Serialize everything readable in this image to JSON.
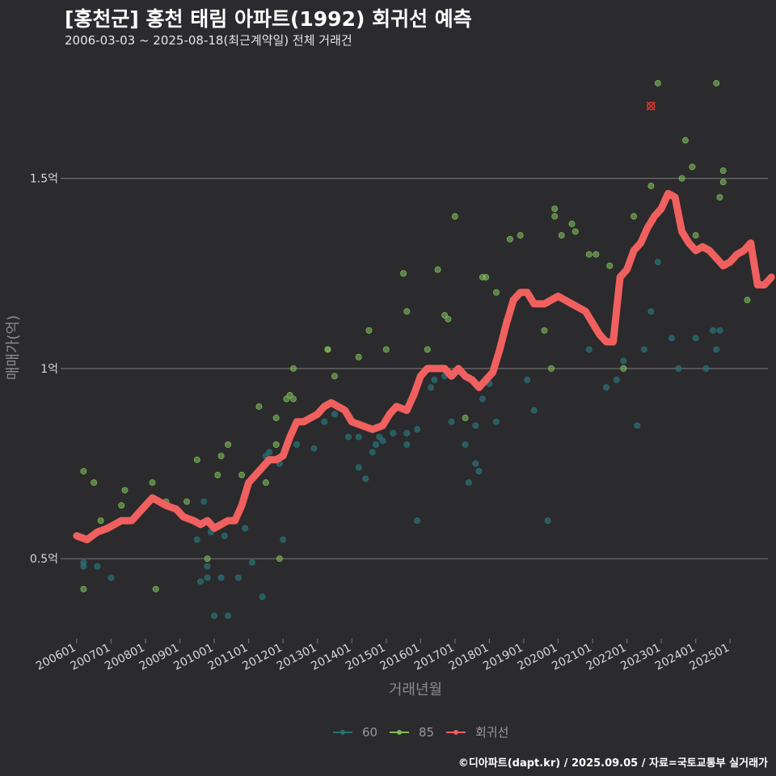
{
  "title": "[홍천군] 홍천 태림 아파트(1992) 회귀선 예측",
  "subtitle": "2006-03-03 ~ 2025-08-18(최근계약일) 전체 거래건",
  "footer": "©디아파트(dapt.kr) / 2025.09.05 / 자료=국토교통부 실거래가",
  "colors": {
    "background": "#2b2a2c",
    "grid": "#6e6e6e",
    "series_60": "#2a6f74",
    "series_85": "#7dbb5c",
    "regression": "#f0605f",
    "highlight": "#d7372f"
  },
  "chart_data": {
    "type": "scatter",
    "xlabel": "거래년월",
    "ylabel": "매매가(억)",
    "x_ticks": [
      "200601",
      "200701",
      "200801",
      "200901",
      "201001",
      "201101",
      "201201",
      "201301",
      "201401",
      "201501",
      "201601",
      "201701",
      "201801",
      "201901",
      "202001",
      "202101",
      "202201",
      "202301",
      "202401",
      "202501"
    ],
    "y_ticks": [
      {
        "value": 0.5,
        "label": "0.5억"
      },
      {
        "value": 1.0,
        "label": "1억"
      },
      {
        "value": 1.5,
        "label": "1.5억"
      }
    ],
    "xlim": [
      2005.65,
      2026.1
    ],
    "ylim": [
      0.29,
      1.82
    ],
    "grid": "horizontal",
    "legend_position": "bottom",
    "series": [
      {
        "name": "60",
        "points": [
          [
            2006.2,
            0.49
          ],
          [
            2006.2,
            0.48
          ],
          [
            2006.6,
            0.48
          ],
          [
            2007.0,
            0.45
          ],
          [
            2008.6,
            0.64
          ],
          [
            2009.5,
            0.55
          ],
          [
            2009.6,
            0.44
          ],
          [
            2009.7,
            0.65
          ],
          [
            2009.8,
            0.45
          ],
          [
            2009.8,
            0.48
          ],
          [
            2009.9,
            0.57
          ],
          [
            2010.0,
            0.35
          ],
          [
            2010.2,
            0.45
          ],
          [
            2010.3,
            0.56
          ],
          [
            2010.4,
            0.35
          ],
          [
            2010.7,
            0.45
          ],
          [
            2010.9,
            0.58
          ],
          [
            2011.1,
            0.49
          ],
          [
            2011.4,
            0.4
          ],
          [
            2011.5,
            0.77
          ],
          [
            2011.6,
            0.78
          ],
          [
            2011.9,
            0.75
          ],
          [
            2012.0,
            0.55
          ],
          [
            2012.4,
            0.8
          ],
          [
            2012.9,
            0.79
          ],
          [
            2013.2,
            0.86
          ],
          [
            2013.5,
            0.88
          ],
          [
            2013.9,
            0.82
          ],
          [
            2014.2,
            0.74
          ],
          [
            2014.2,
            0.82
          ],
          [
            2014.4,
            0.71
          ],
          [
            2014.6,
            0.78
          ],
          [
            2014.7,
            0.8
          ],
          [
            2014.8,
            0.82
          ],
          [
            2014.9,
            0.81
          ],
          [
            2015.2,
            0.83
          ],
          [
            2015.6,
            0.8
          ],
          [
            2015.6,
            0.83
          ],
          [
            2015.9,
            0.6
          ],
          [
            2015.9,
            0.84
          ],
          [
            2016.3,
            0.95
          ],
          [
            2016.4,
            0.97
          ],
          [
            2016.7,
            0.98
          ],
          [
            2016.9,
            0.86
          ],
          [
            2017.3,
            0.8
          ],
          [
            2017.4,
            0.7
          ],
          [
            2017.6,
            0.85
          ],
          [
            2017.6,
            0.75
          ],
          [
            2017.7,
            0.73
          ],
          [
            2017.8,
            0.92
          ],
          [
            2018.0,
            0.96
          ],
          [
            2018.2,
            0.86
          ],
          [
            2019.1,
            0.97
          ],
          [
            2019.3,
            0.89
          ],
          [
            2019.7,
            0.6
          ],
          [
            2020.9,
            1.05
          ],
          [
            2021.4,
            0.95
          ],
          [
            2021.7,
            0.97
          ],
          [
            2021.9,
            1.02
          ],
          [
            2022.3,
            0.85
          ],
          [
            2022.5,
            1.05
          ],
          [
            2022.7,
            1.15
          ],
          [
            2022.9,
            1.28
          ],
          [
            2023.3,
            1.08
          ],
          [
            2023.5,
            1.0
          ],
          [
            2024.0,
            1.08
          ],
          [
            2024.3,
            1.0
          ],
          [
            2024.5,
            1.1
          ],
          [
            2024.6,
            1.05
          ],
          [
            2024.7,
            1.1
          ]
        ]
      },
      {
        "name": "85",
        "points": [
          [
            2006.2,
            0.73
          ],
          [
            2006.2,
            0.42
          ],
          [
            2006.5,
            0.7
          ],
          [
            2006.7,
            0.6
          ],
          [
            2007.3,
            0.64
          ],
          [
            2007.4,
            0.68
          ],
          [
            2008.2,
            0.7
          ],
          [
            2008.3,
            0.42
          ],
          [
            2008.6,
            0.65
          ],
          [
            2009.2,
            0.65
          ],
          [
            2009.5,
            0.76
          ],
          [
            2009.8,
            0.5
          ],
          [
            2010.1,
            0.72
          ],
          [
            2010.2,
            0.77
          ],
          [
            2010.4,
            0.8
          ],
          [
            2010.8,
            0.72
          ],
          [
            2011.3,
            0.9
          ],
          [
            2011.5,
            0.7
          ],
          [
            2011.8,
            0.87
          ],
          [
            2011.8,
            0.8
          ],
          [
            2011.9,
            0.5
          ],
          [
            2012.1,
            0.92
          ],
          [
            2012.2,
            0.93
          ],
          [
            2012.3,
            1.0
          ],
          [
            2012.3,
            0.92
          ],
          [
            2013.3,
            1.05
          ],
          [
            2013.3,
            1.05
          ],
          [
            2013.5,
            0.98
          ],
          [
            2014.2,
            1.03
          ],
          [
            2014.5,
            1.1
          ],
          [
            2015.0,
            1.05
          ],
          [
            2015.5,
            1.25
          ],
          [
            2015.6,
            1.15
          ],
          [
            2016.2,
            1.05
          ],
          [
            2016.5,
            1.26
          ],
          [
            2016.7,
            1.14
          ],
          [
            2016.8,
            1.13
          ],
          [
            2017.0,
            1.4
          ],
          [
            2017.3,
            0.87
          ],
          [
            2017.8,
            1.24
          ],
          [
            2017.9,
            1.24
          ],
          [
            2018.2,
            1.2
          ],
          [
            2018.6,
            1.34
          ],
          [
            2018.9,
            1.35
          ],
          [
            2019.6,
            1.1
          ],
          [
            2019.8,
            1.0
          ],
          [
            2019.9,
            1.42
          ],
          [
            2019.9,
            1.4
          ],
          [
            2020.1,
            1.35
          ],
          [
            2020.4,
            1.38
          ],
          [
            2020.5,
            1.36
          ],
          [
            2020.9,
            1.3
          ],
          [
            2021.1,
            1.3
          ],
          [
            2021.5,
            1.27
          ],
          [
            2021.9,
            1.0
          ],
          [
            2022.2,
            1.4
          ],
          [
            2022.7,
            1.48
          ],
          [
            2022.9,
            1.75
          ],
          [
            2023.6,
            1.5
          ],
          [
            2023.7,
            1.6
          ],
          [
            2023.9,
            1.53
          ],
          [
            2024.0,
            1.35
          ],
          [
            2024.6,
            1.75
          ],
          [
            2024.7,
            1.45
          ],
          [
            2024.8,
            1.52
          ],
          [
            2024.8,
            1.49
          ],
          [
            2025.5,
            1.18
          ]
        ]
      },
      {
        "name": "회귀선",
        "points": [
          [
            2006.0,
            0.56
          ],
          [
            2006.3,
            0.55
          ],
          [
            2006.6,
            0.57
          ],
          [
            2006.9,
            0.58
          ],
          [
            2007.1,
            0.59
          ],
          [
            2007.3,
            0.6
          ],
          [
            2007.6,
            0.6
          ],
          [
            2007.8,
            0.62
          ],
          [
            2008.0,
            0.64
          ],
          [
            2008.2,
            0.66
          ],
          [
            2008.6,
            0.64
          ],
          [
            2008.9,
            0.63
          ],
          [
            2009.1,
            0.61
          ],
          [
            2009.4,
            0.6
          ],
          [
            2009.6,
            0.59
          ],
          [
            2009.8,
            0.6
          ],
          [
            2010.0,
            0.58
          ],
          [
            2010.2,
            0.59
          ],
          [
            2010.4,
            0.6
          ],
          [
            2010.6,
            0.6
          ],
          [
            2010.8,
            0.64
          ],
          [
            2011.0,
            0.7
          ],
          [
            2011.2,
            0.72
          ],
          [
            2011.4,
            0.74
          ],
          [
            2011.6,
            0.76
          ],
          [
            2011.8,
            0.76
          ],
          [
            2012.0,
            0.77
          ],
          [
            2012.2,
            0.82
          ],
          [
            2012.4,
            0.86
          ],
          [
            2012.6,
            0.86
          ],
          [
            2012.8,
            0.87
          ],
          [
            2013.0,
            0.88
          ],
          [
            2013.2,
            0.9
          ],
          [
            2013.4,
            0.91
          ],
          [
            2013.6,
            0.9
          ],
          [
            2013.8,
            0.89
          ],
          [
            2014.0,
            0.86
          ],
          [
            2014.3,
            0.85
          ],
          [
            2014.6,
            0.84
          ],
          [
            2014.9,
            0.85
          ],
          [
            2015.1,
            0.88
          ],
          [
            2015.3,
            0.9
          ],
          [
            2015.6,
            0.89
          ],
          [
            2015.8,
            0.93
          ],
          [
            2016.0,
            0.98
          ],
          [
            2016.2,
            1.0
          ],
          [
            2016.4,
            1.0
          ],
          [
            2016.7,
            1.0
          ],
          [
            2016.9,
            0.98
          ],
          [
            2017.1,
            1.0
          ],
          [
            2017.3,
            0.98
          ],
          [
            2017.5,
            0.97
          ],
          [
            2017.7,
            0.95
          ],
          [
            2017.9,
            0.97
          ],
          [
            2018.1,
            0.99
          ],
          [
            2018.3,
            1.05
          ],
          [
            2018.5,
            1.12
          ],
          [
            2018.7,
            1.18
          ],
          [
            2018.9,
            1.2
          ],
          [
            2019.1,
            1.2
          ],
          [
            2019.3,
            1.17
          ],
          [
            2019.6,
            1.17
          ],
          [
            2019.8,
            1.18
          ],
          [
            2020.0,
            1.19
          ],
          [
            2020.2,
            1.18
          ],
          [
            2020.4,
            1.17
          ],
          [
            2020.6,
            1.16
          ],
          [
            2020.8,
            1.15
          ],
          [
            2021.0,
            1.12
          ],
          [
            2021.2,
            1.09
          ],
          [
            2021.4,
            1.07
          ],
          [
            2021.6,
            1.07
          ],
          [
            2021.8,
            1.24
          ],
          [
            2022.0,
            1.26
          ],
          [
            2022.2,
            1.31
          ],
          [
            2022.4,
            1.33
          ],
          [
            2022.6,
            1.37
          ],
          [
            2022.8,
            1.4
          ],
          [
            2023.0,
            1.42
          ],
          [
            2023.2,
            1.46
          ],
          [
            2023.4,
            1.45
          ],
          [
            2023.6,
            1.36
          ],
          [
            2023.8,
            1.33
          ],
          [
            2024.0,
            1.31
          ],
          [
            2024.2,
            1.32
          ],
          [
            2024.4,
            1.31
          ],
          [
            2024.6,
            1.29
          ],
          [
            2024.8,
            1.27
          ],
          [
            2025.0,
            1.28
          ],
          [
            2025.2,
            1.3
          ],
          [
            2025.4,
            1.31
          ],
          [
            2025.6,
            1.33
          ],
          [
            2025.8,
            1.22
          ],
          [
            2026.0,
            1.22
          ],
          [
            2026.2,
            1.24
          ]
        ]
      }
    ],
    "highlight_point": [
      2022.7,
      1.69
    ]
  }
}
